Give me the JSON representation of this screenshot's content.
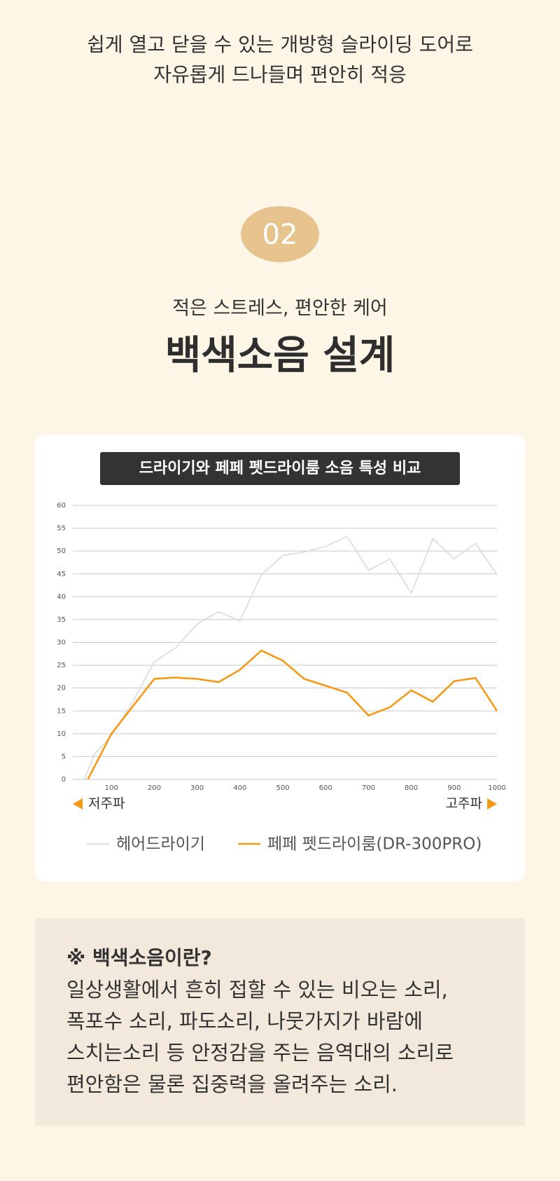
{
  "header": {
    "lines": [
      "쉽게 열고 닫을 수 있는 개방형 슬라이딩 도어로",
      "자유롭게 드나들며 편안히 적응"
    ]
  },
  "badge": "02",
  "subtitle": "적은 스트레스, 편안한 케어",
  "heading": "백색소음 설계",
  "chart_data": {
    "type": "line",
    "title": "드라이기와 페페 펫드라이룸 소음 특성 비교",
    "low_label": "저주파",
    "high_label": "고주파",
    "xlim": [
      0,
      1000
    ],
    "xticks": [
      100,
      200,
      300,
      400,
      500,
      600,
      700,
      800,
      900,
      1000
    ],
    "ylim": [
      0,
      60
    ],
    "yticks": [
      0,
      5,
      10,
      15,
      20,
      25,
      30,
      35,
      40,
      45,
      50,
      55,
      60
    ],
    "grid": true,
    "series": [
      {
        "name": "헤어드라이기",
        "color": "#d4d4d4",
        "x": [
          37,
          60,
          100,
          150,
          200,
          250,
          300,
          350,
          400,
          450,
          500,
          550,
          600,
          650,
          700,
          750,
          800,
          850,
          900,
          950,
          1000
        ],
        "values": [
          0,
          5.5,
          9.5,
          17,
          25.8,
          28.8,
          34,
          36.7,
          34.7,
          44.8,
          49,
          49.8,
          51,
          53.2,
          45.8,
          48.2,
          40.8,
          52.7,
          48.3,
          51.7,
          44.8
        ]
      },
      {
        "name": "페페 펫드라이룸(DR-300PRO)",
        "color": "#f59a16",
        "x": [
          45,
          100,
          150,
          200,
          250,
          300,
          350,
          400,
          450,
          500,
          550,
          600,
          650,
          700,
          750,
          800,
          850,
          900,
          950,
          1000
        ],
        "values": [
          0,
          10,
          16,
          22,
          22.3,
          22,
          21.3,
          24,
          28.2,
          26,
          22,
          20.5,
          19,
          14,
          15.8,
          19.5,
          17,
          21.5,
          22.2,
          15
        ]
      }
    ]
  },
  "info": {
    "title": "※ 백색소음이란?",
    "lines": [
      "일상생활에서 흔히 접할 수 있는 비오는 소리,",
      "폭포수 소리, 파도소리, 나뭇가지가 바람에",
      "스치는소리 등 안정감을 주는 음역대의 소리로",
      "편안함은 물론 집중력을 올려주는 소리."
    ]
  }
}
